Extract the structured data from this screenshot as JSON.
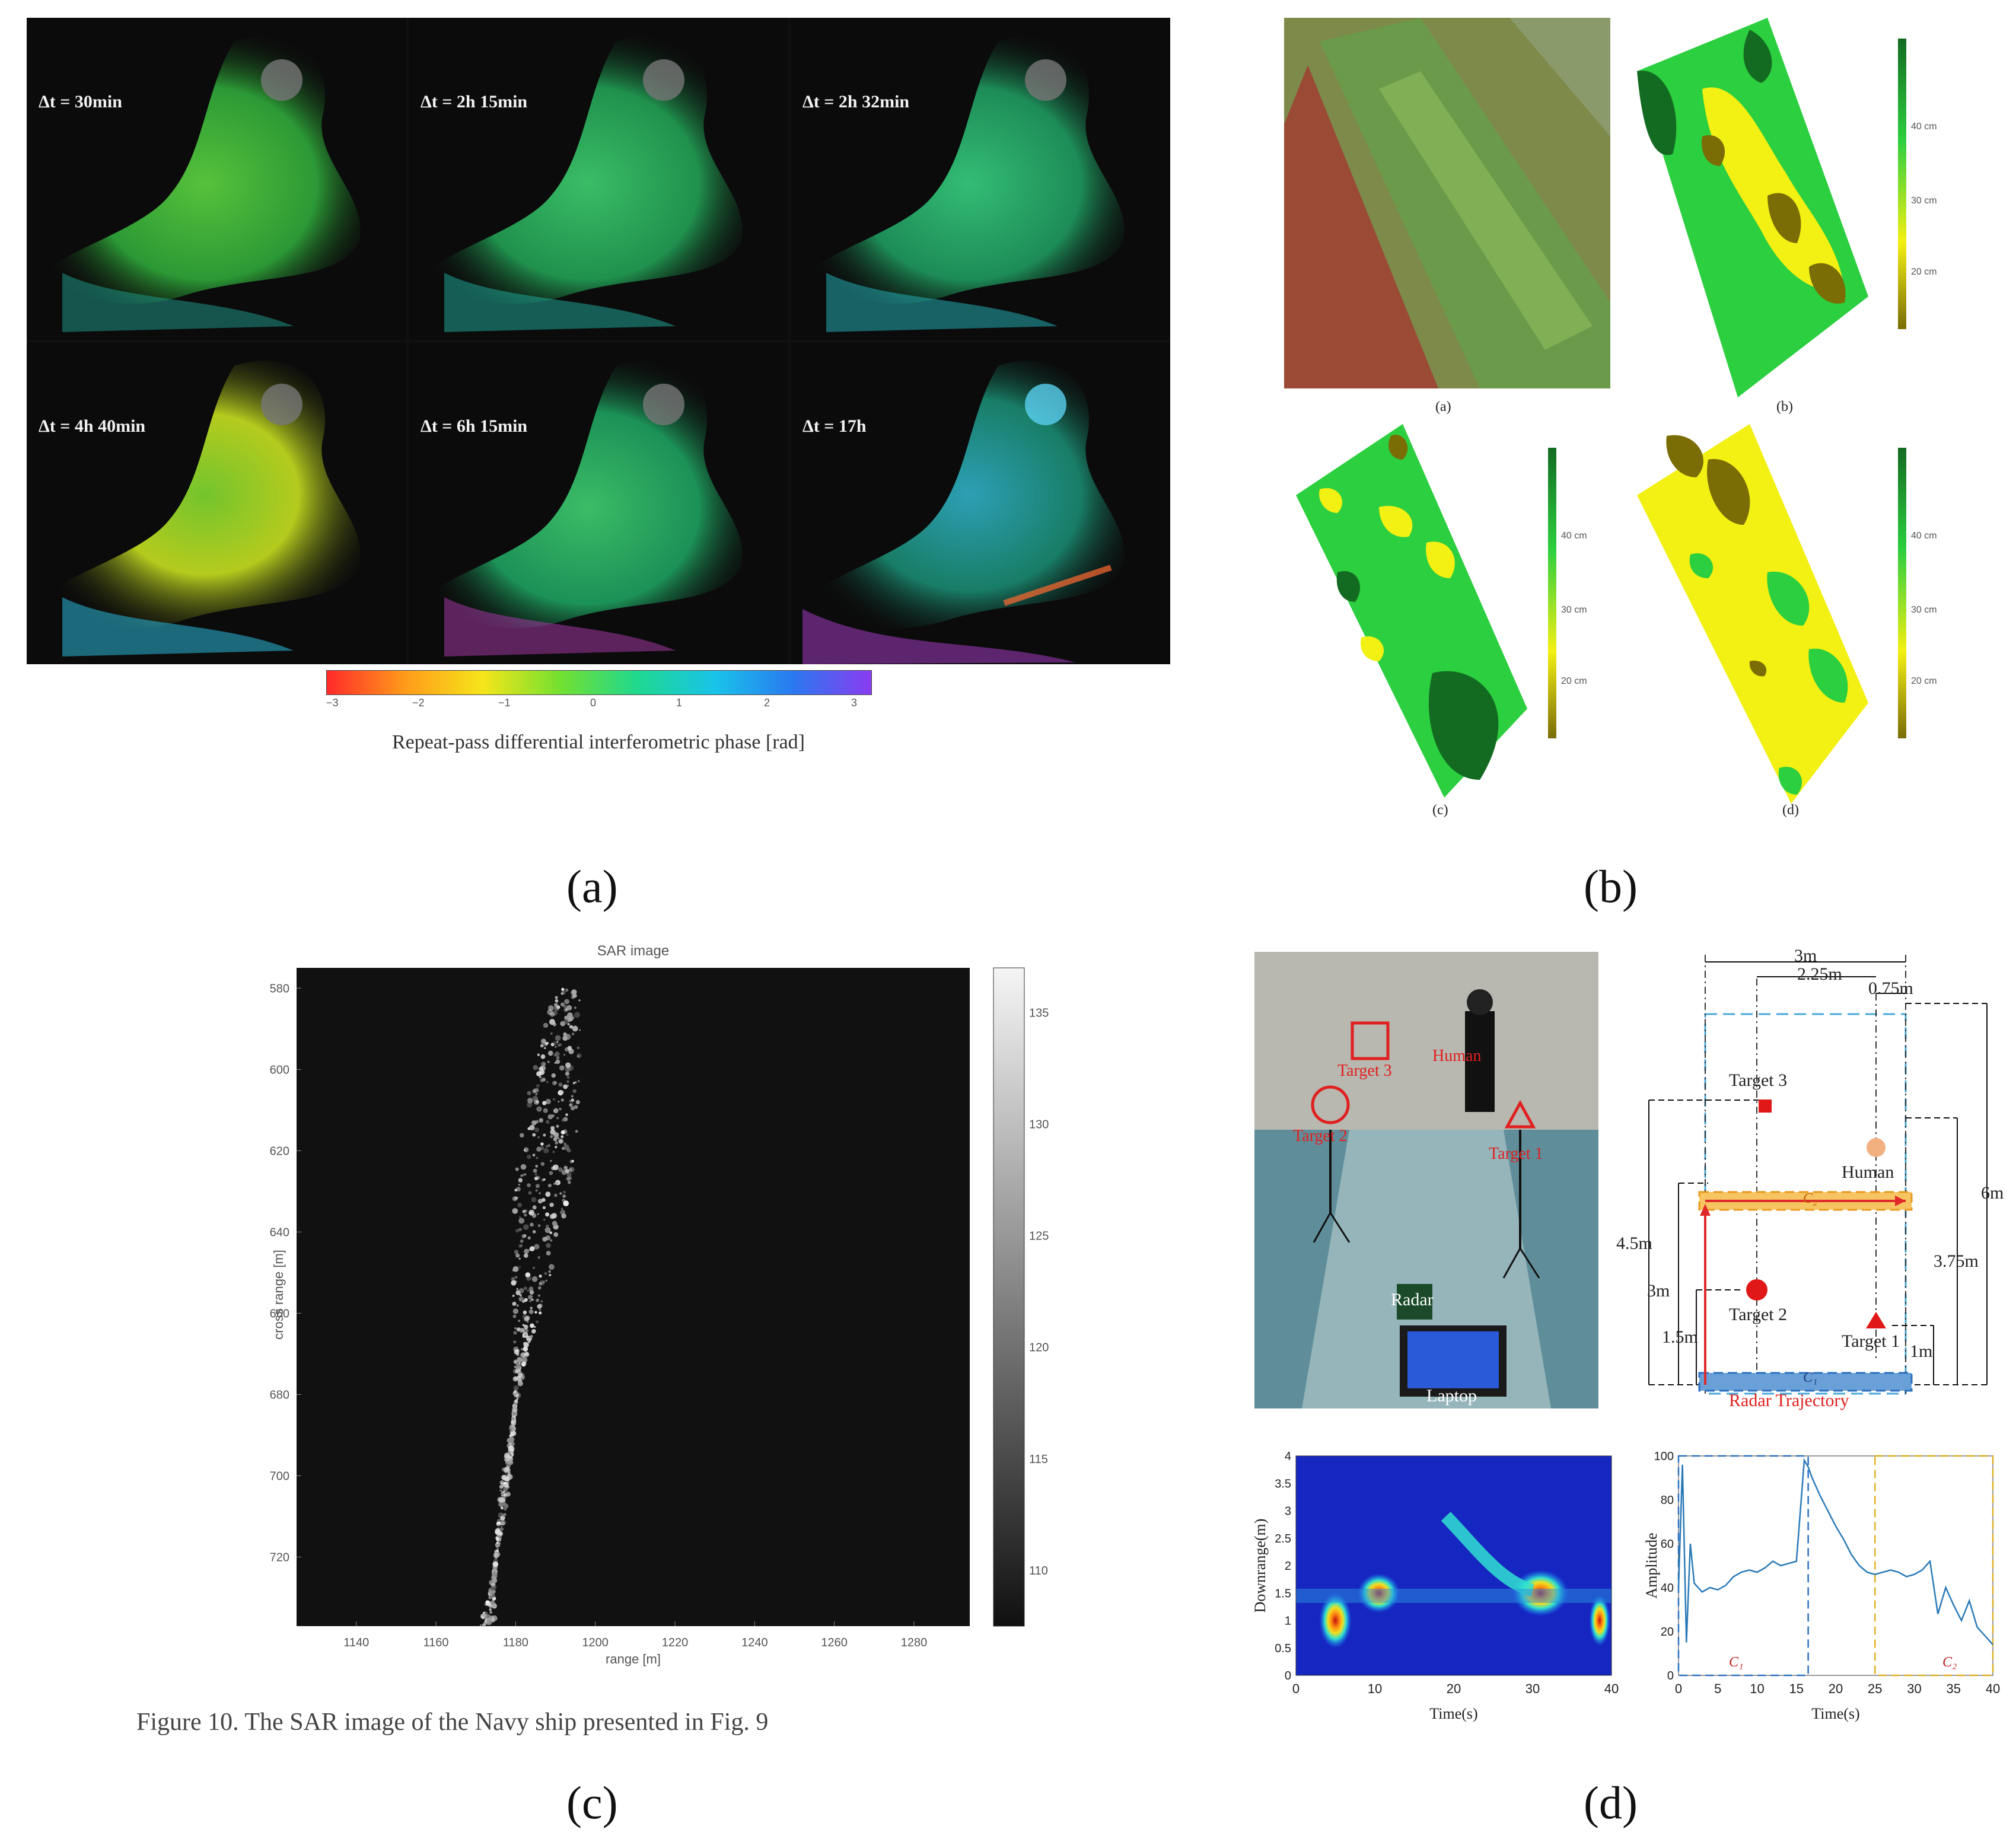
{
  "panels": {
    "a": {
      "label": "(a)",
      "tiles": [
        {
          "label": "Δt = 30min"
        },
        {
          "label": "Δt = 2h 15min"
        },
        {
          "label": "Δt = 2h 32min"
        },
        {
          "label": "Δt = 4h 40min"
        },
        {
          "label": "Δt = 6h 15min"
        },
        {
          "label": "Δt = 17h"
        }
      ],
      "colorbar": {
        "ticks": [
          "−3",
          "−2",
          "−1",
          "0",
          "1",
          "2",
          "3"
        ],
        "caption": "Repeat-pass differential interferometric phase [rad]",
        "colors": [
          "#ff2a2a",
          "#ff9a1a",
          "#f6e51a",
          "#73e030",
          "#1fd890",
          "#19c3ea",
          "#2a78f0",
          "#8a3cf0"
        ]
      }
    },
    "b": {
      "label": "(b)",
      "sublabels": [
        "(a)",
        "(b)",
        "(c)",
        "(d)"
      ],
      "colorbar_ticks": [
        "40 cm",
        "30 cm",
        "20 cm"
      ],
      "colors": {
        "dark_green": "#136b22",
        "green": "#2ccf3f",
        "yellow": "#f3f013",
        "olive": "#7a6d06"
      }
    },
    "c": {
      "label": "(c)",
      "chart_data": {
        "type": "heatmap",
        "title": "SAR image",
        "xlabel": "range [m]",
        "ylabel": "cross range [m]",
        "xticks": [
          1140,
          1160,
          1180,
          1200,
          1220,
          1240,
          1260,
          1280
        ],
        "yticks": [
          580,
          600,
          620,
          640,
          660,
          680,
          700,
          720
        ],
        "colorbar_ticks": [
          135,
          130,
          125,
          120,
          115,
          110
        ],
        "xlim": [
          1125,
          1294
        ],
        "ylim": [
          575,
          737
        ],
        "colormap": "gray"
      },
      "caption": "Figure 10. The SAR image of the Navy ship presented in Fig. 9"
    },
    "d": {
      "label": "(d)",
      "photo": {
        "labels": [
          "Target 3",
          "Human",
          "Target 2",
          "Target 1",
          "Radar",
          "Laptop"
        ]
      },
      "diagram": {
        "dims_top": [
          "3m",
          "2.25m",
          "0.75m"
        ],
        "targets": [
          "Target 3",
          "Human",
          "Target 2",
          "Target 1"
        ],
        "dims_left": [
          "4.5m",
          "3m",
          "1.5m"
        ],
        "dims_right": [
          "6m",
          "3.75m",
          "1m"
        ],
        "track_labels": [
          "C₂",
          "C₁"
        ],
        "trajectory_label": "Radar Trajectory"
      },
      "heatmap": {
        "type": "heatmap",
        "xlabel": "Time(s)",
        "ylabel": "Downrange(m)",
        "xticks": [
          "0",
          "10",
          "20",
          "30",
          "40"
        ],
        "yticks": [
          "0",
          "0.5",
          "1",
          "1.5",
          "2",
          "2.5",
          "3",
          "3.5",
          "4"
        ],
        "xlim": [
          0,
          40
        ],
        "ylim": [
          0,
          4
        ]
      },
      "chart_data": {
        "type": "line",
        "xlabel": "Time(s)",
        "ylabel": "Amplitude",
        "xticks": [
          "0",
          "5",
          "10",
          "15",
          "20",
          "25",
          "30",
          "35",
          "40"
        ],
        "yticks": [
          "0",
          "20",
          "40",
          "60",
          "80",
          "100"
        ],
        "xlim": [
          0,
          40
        ],
        "ylim": [
          0,
          100
        ],
        "segment_labels": [
          "C₁",
          "C₂"
        ],
        "x": [
          0,
          0.5,
          1,
          1.5,
          2,
          3,
          4,
          5,
          6,
          7,
          8,
          9,
          10,
          11,
          12,
          13,
          14,
          15,
          16,
          16.5,
          17,
          18,
          19,
          20,
          21,
          22,
          23,
          24,
          25,
          26,
          27,
          28,
          29,
          30,
          31,
          32,
          33,
          34,
          35,
          36,
          37,
          38,
          39,
          40
        ],
        "values": [
          40,
          96,
          15,
          60,
          42,
          38,
          40,
          39,
          41,
          45,
          47,
          48,
          47,
          49,
          52,
          50,
          51,
          52,
          98,
          95,
          90,
          82,
          75,
          68,
          62,
          55,
          50,
          47,
          46,
          47,
          48,
          47,
          45,
          46,
          48,
          52,
          28,
          40,
          32,
          25,
          34,
          22,
          18,
          14
        ]
      }
    }
  }
}
